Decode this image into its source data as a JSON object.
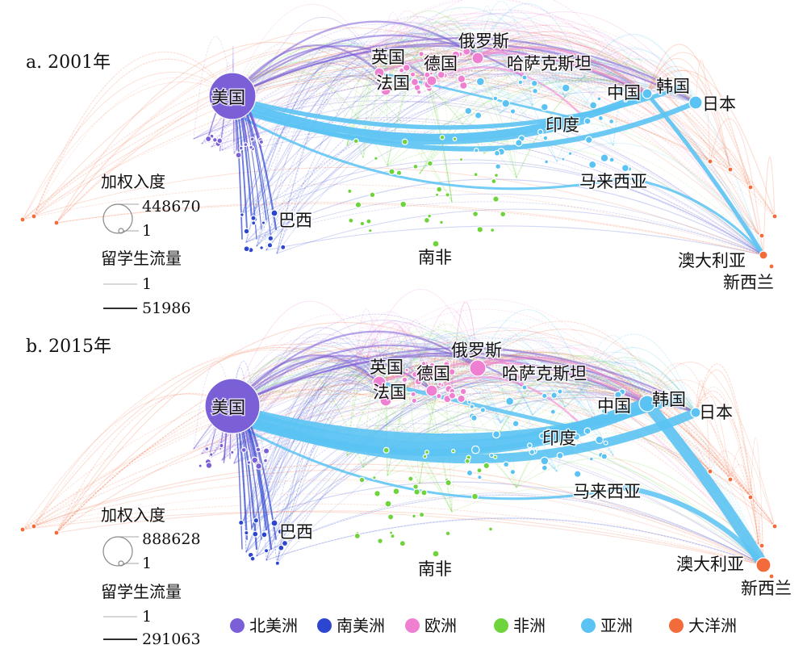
{
  "colors": {
    "北美洲": "#7b5fd6",
    "南美洲": "#2d46d0",
    "欧洲": "#ee7fd1",
    "非洲": "#6fd43c",
    "亚洲": "#5bc3f3",
    "大洋洲": "#f26b3a"
  },
  "continents": [
    "北美洲",
    "南美洲",
    "欧洲",
    "非洲",
    "亚洲",
    "大洋洲"
  ],
  "panels": [
    {
      "title": "a. 2001年",
      "legend": {
        "indegree_title": "加权入度",
        "indegree_max": "448670",
        "indegree_min": "1",
        "flow_title": "留学生流量",
        "flow_min": "1",
        "flow_max": "51986"
      },
      "countries": [
        {
          "name": "美国",
          "continent": "北美洲"
        },
        {
          "name": "英国",
          "continent": "欧洲"
        },
        {
          "name": "德国",
          "continent": "欧洲"
        },
        {
          "name": "法国",
          "continent": "欧洲"
        },
        {
          "name": "俄罗斯",
          "continent": "欧洲"
        },
        {
          "name": "哈萨克斯坦",
          "continent": "亚洲"
        },
        {
          "name": "中国",
          "continent": "亚洲"
        },
        {
          "name": "韩国",
          "continent": "亚洲"
        },
        {
          "name": "日本",
          "continent": "亚洲"
        },
        {
          "name": "印度",
          "continent": "亚洲"
        },
        {
          "name": "马来西亚",
          "continent": "亚洲"
        },
        {
          "name": "巴西",
          "continent": "南美洲"
        },
        {
          "name": "南非",
          "continent": "非洲"
        },
        {
          "name": "澳大利亚",
          "continent": "大洋洲"
        },
        {
          "name": "新西兰",
          "continent": "大洋洲"
        }
      ]
    },
    {
      "title": "b. 2015年",
      "legend": {
        "indegree_title": "加权入度",
        "indegree_max": "888628",
        "indegree_min": "1",
        "flow_title": "留学生流量",
        "flow_min": "1",
        "flow_max": "291063"
      },
      "countries": [
        {
          "name": "美国",
          "continent": "北美洲"
        },
        {
          "name": "英国",
          "continent": "欧洲"
        },
        {
          "name": "德国",
          "continent": "欧洲"
        },
        {
          "name": "法国",
          "continent": "欧洲"
        },
        {
          "name": "俄罗斯",
          "continent": "欧洲"
        },
        {
          "name": "哈萨克斯坦",
          "continent": "亚洲"
        },
        {
          "name": "中国",
          "continent": "亚洲"
        },
        {
          "name": "韩国",
          "continent": "亚洲"
        },
        {
          "name": "日本",
          "continent": "亚洲"
        },
        {
          "name": "印度",
          "continent": "亚洲"
        },
        {
          "name": "马来西亚",
          "continent": "亚洲"
        },
        {
          "name": "巴西",
          "continent": "南美洲"
        },
        {
          "name": "南非",
          "continent": "非洲"
        },
        {
          "name": "澳大利亚",
          "continent": "大洋洲"
        },
        {
          "name": "新西兰",
          "continent": "大洋洲"
        }
      ]
    }
  ]
}
